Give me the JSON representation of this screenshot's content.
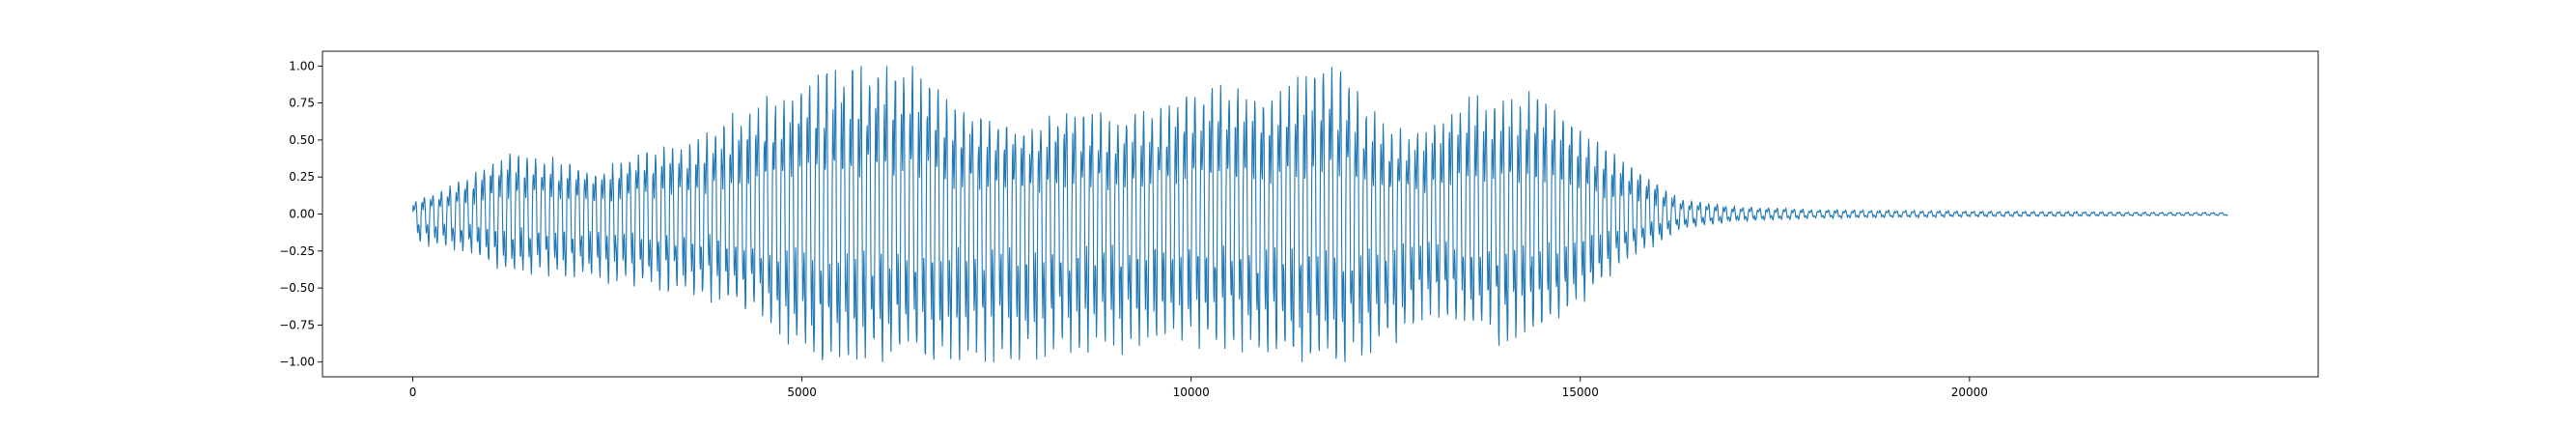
{
  "chart_data": {
    "type": "line",
    "title": "",
    "xlabel": "",
    "ylabel": "",
    "xlim": [
      -1160,
      24480
    ],
    "ylim": [
      -1.1,
      1.1
    ],
    "grid": false,
    "line_color": "#1f77b4",
    "x_ticks": [
      0,
      5000,
      10000,
      15000,
      20000
    ],
    "x_tick_labels": [
      "0",
      "5000",
      "10000",
      "15000",
      "20000"
    ],
    "y_ticks": [
      1.0,
      0.75,
      0.5,
      0.25,
      0.0,
      -0.25,
      -0.5,
      -0.75,
      -1.0
    ],
    "y_tick_labels": [
      "1.00",
      "0.75",
      "0.50",
      "0.25",
      "0.00",
      "−0.25",
      "−0.50",
      "−0.75",
      "−1.00"
    ],
    "series": [
      {
        "signal_length": 23318,
        "envelope_x": [
          0,
          600,
          1200,
          1800,
          2400,
          3000,
          3600,
          4000,
          4400,
          4800,
          5200,
          5500,
          6000,
          6500,
          7000,
          7500,
          8000,
          8500,
          9000,
          9500,
          10000,
          10500,
          11000,
          11500,
          12000,
          12300,
          12600,
          13000,
          13500,
          14000,
          14500,
          15000,
          15500,
          16000,
          16300,
          17000,
          18000,
          20000,
          23318
        ],
        "envelope_positive": [
          0.08,
          0.22,
          0.42,
          0.38,
          0.3,
          0.45,
          0.5,
          0.65,
          0.75,
          0.85,
          0.97,
          1.0,
          1.0,
          1.0,
          0.72,
          0.65,
          0.6,
          0.75,
          0.65,
          0.7,
          0.82,
          0.88,
          0.8,
          1.0,
          1.0,
          0.7,
          0.55,
          0.6,
          0.8,
          0.75,
          0.85,
          0.6,
          0.4,
          0.22,
          0.1,
          0.05,
          0.03,
          0.02,
          0.01
        ],
        "envelope_negative": [
          -0.2,
          -0.25,
          -0.4,
          -0.42,
          -0.45,
          -0.5,
          -0.55,
          -0.6,
          -0.7,
          -0.85,
          -1.0,
          -1.0,
          -1.0,
          -1.0,
          -1.0,
          -1.0,
          -0.98,
          -0.95,
          -0.92,
          -0.9,
          -0.88,
          -0.9,
          -0.98,
          -1.0,
          -1.0,
          -0.95,
          -0.9,
          -0.7,
          -0.75,
          -0.9,
          -0.85,
          -0.6,
          -0.35,
          -0.2,
          -0.1,
          -0.05,
          -0.03,
          -0.02,
          -0.01
        ]
      }
    ]
  }
}
